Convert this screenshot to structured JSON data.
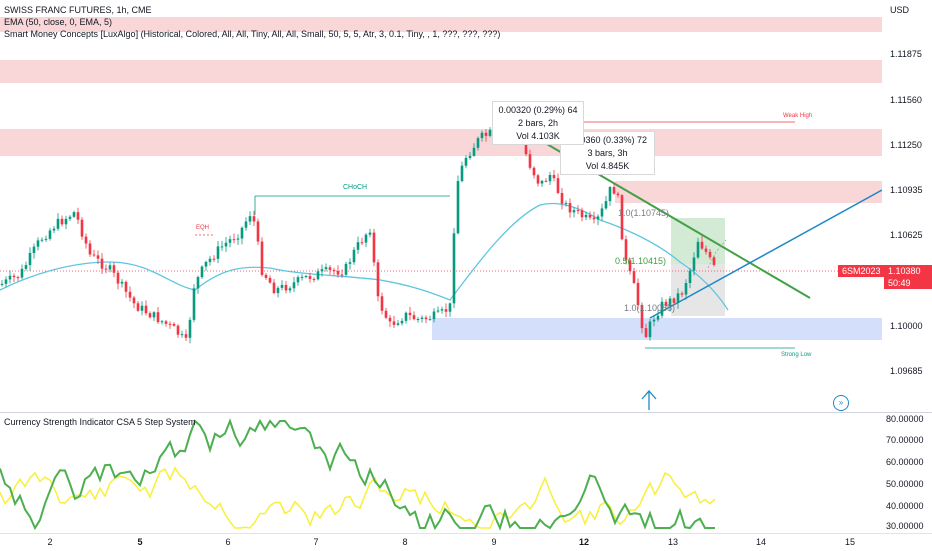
{
  "header": {
    "title": "SWISS FRANC FUTURES, 1h, CME",
    "ema_label": "EMA (50, close, 0, EMA, 5)",
    "smc_label": "Smart Money Concepts [LuxAlgo] (Historical, Colored, All, All, Tiny, All, All, Small, 50, 5, 5, Atr, 3, 0.1, Tiny, , 1, ???, ???, ???)"
  },
  "price_axis": {
    "currency": "USD",
    "ticks": [
      "1.11875",
      "1.11560",
      "1.11250",
      "1.10935",
      "1.10625",
      "1.10000",
      "1.09685"
    ]
  },
  "symbol_tag": {
    "label": "6SM2023",
    "price": "1.10380",
    "countdown": "50:49",
    "color": "#f23645"
  },
  "annotations": {
    "choch": "CHoCH",
    "eqh": "EQH",
    "weak_high": "Weak High",
    "strong_low": "Strong Low",
    "fib_1": "1.0(1.10745)",
    "fib_05": "0.5(1.10415)",
    "fib_0": "1.0(1.10085)"
  },
  "measure_1": {
    "line1": "0.00320 (0.29%) 64",
    "line2": "2 bars, 2h",
    "line3": "Vol 4.103K"
  },
  "measure_2": {
    "line1": "0.00360 (0.33%) 72",
    "line2": "3 bars, 3h",
    "line3": "Vol 4.845K"
  },
  "indicator": {
    "title": "Currency Strength Indicator CSA 5 Step System",
    "ticks": [
      "80.00000",
      "70.00000",
      "60.00000",
      "50.00000",
      "40.00000",
      "30.00000"
    ]
  },
  "time_axis": {
    "labels": [
      {
        "text": "2",
        "bold": false
      },
      {
        "text": "5",
        "bold": true
      },
      {
        "text": "6",
        "bold": false
      },
      {
        "text": "7",
        "bold": false
      },
      {
        "text": "8",
        "bold": false
      },
      {
        "text": "9",
        "bold": false
      },
      {
        "text": "12",
        "bold": true
      },
      {
        "text": "13",
        "bold": false
      },
      {
        "text": "14",
        "bold": false
      },
      {
        "text": "15",
        "bold": false
      }
    ]
  },
  "icons": {
    "scroll_to_realtime": "double-chevron-right-icon",
    "signal_arrow": "up-arrow-icon"
  },
  "colors": {
    "bull": "#089981",
    "bear": "#f23645",
    "ema": "#5dc6e0",
    "trend_green": "#43a047",
    "trend_blue": "#1e88c7",
    "strength_green": "#4caf50",
    "strength_yellow": "#f7f03a"
  }
}
